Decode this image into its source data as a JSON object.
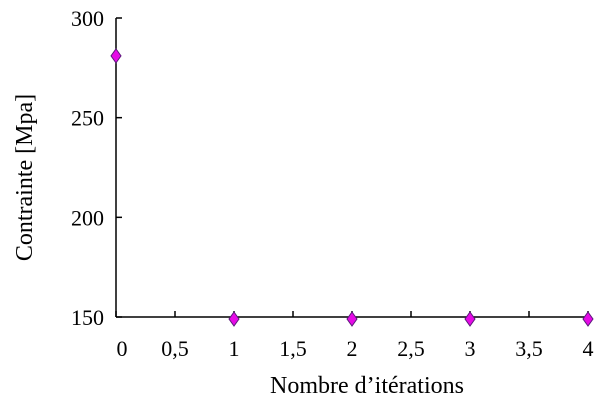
{
  "chart_data": {
    "type": "scatter",
    "title": "",
    "xlabel": "Nombre d’itérations",
    "ylabel": "Contrainte [Mpa]",
    "xlim": [
      0,
      4
    ],
    "ylim": [
      150,
      300
    ],
    "x_ticks": [
      0,
      0.5,
      1,
      1.5,
      2,
      2.5,
      3,
      3.5,
      4
    ],
    "x_tick_labels": [
      "0",
      "0,5",
      "1",
      "1,5",
      "2",
      "2,5",
      "3",
      "3,5",
      "4"
    ],
    "y_ticks": [
      150,
      200,
      250,
      300
    ],
    "y_tick_labels": [
      "150",
      "200",
      "250",
      "300"
    ],
    "grid": false,
    "legend": false,
    "marker": "diamond",
    "marker_color": "#e60ae6",
    "marker_edge_color": "#5a1a7a",
    "series": [
      {
        "x": [
          0,
          1,
          2,
          3,
          4
        ],
        "y": [
          281,
          149,
          149,
          149,
          149
        ]
      }
    ]
  }
}
